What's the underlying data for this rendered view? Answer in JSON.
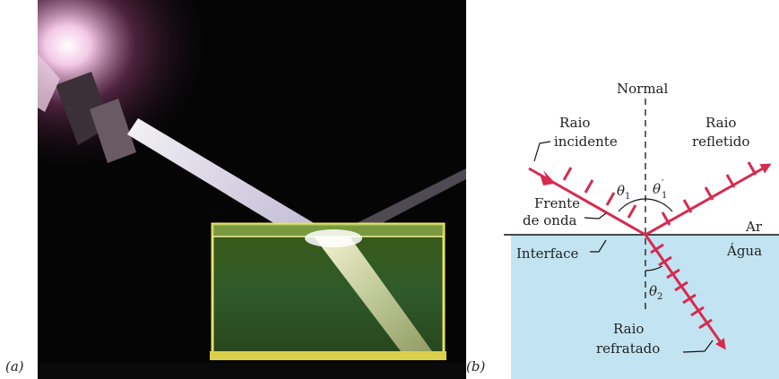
{
  "panels": {
    "a_label": "(a)",
    "b_label": "(b)"
  },
  "diagram": {
    "normal_label": "Normal",
    "incident_label_line1": "Raio",
    "incident_label_line2": "incidente",
    "reflected_label_line1": "Raio",
    "reflected_label_line2": "refletido",
    "wavefront_label_line1": "Frente",
    "wavefront_label_line2": "de onda",
    "interface_label": "Interface",
    "air_label": "Ar",
    "water_label": "Água",
    "refracted_label_line1": "Raio",
    "refracted_label_line2": "refratado",
    "theta1_symbol": "θ",
    "theta1_sub": "1",
    "theta1p_symbol": "θ",
    "theta1p_prime": "′",
    "theta1p_sub": "1",
    "theta2_symbol": "θ",
    "theta2_sub": "2",
    "colors": {
      "ray": "#d62b4f",
      "water": "#c2e4f2",
      "line": "#111111"
    }
  }
}
